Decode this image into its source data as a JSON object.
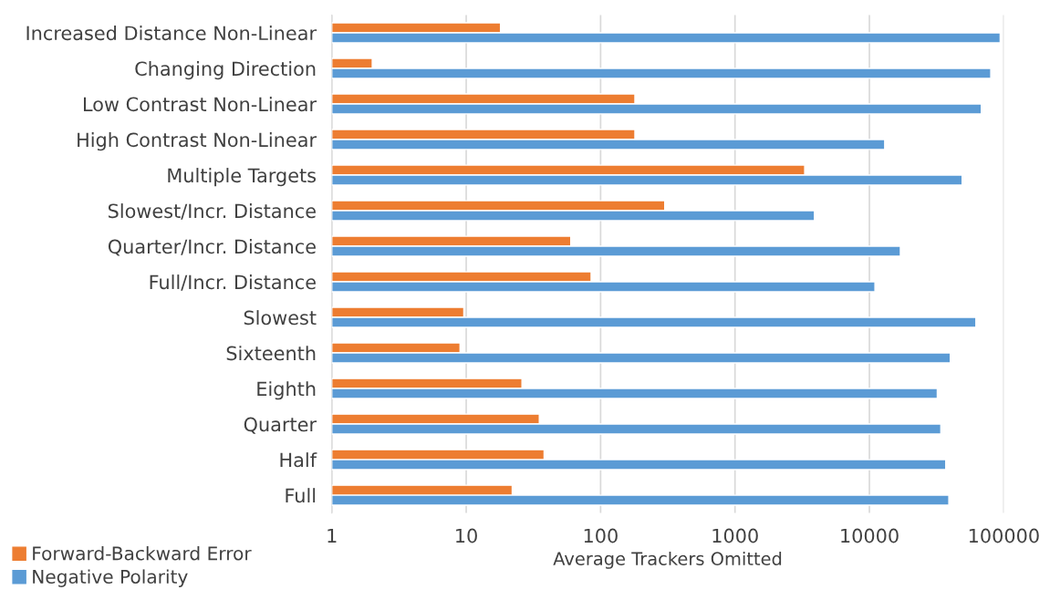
{
  "chart_data": {
    "type": "bar",
    "orientation": "horizontal",
    "log": "x",
    "categories": [
      "Increased Distance Non-Linear",
      "Changing Direction",
      "Low Contrast Non-Linear",
      "High Contrast Non-Linear",
      "Multiple Targets",
      "Slowest/Incr. Distance",
      "Quarter/Incr. Distance",
      "Full/Incr. Distance",
      "Slowest",
      "Sixteenth",
      "Eighth",
      "Quarter",
      "Half",
      "Full"
    ],
    "series": [
      {
        "name": "Forward-Backward Error",
        "color": "#ed7d31",
        "values": [
          18,
          2,
          180,
          180,
          3300,
          300,
          60,
          85,
          9.6,
          9,
          26,
          35,
          38,
          22
        ]
      },
      {
        "name": "Negative Polarity",
        "color": "#5b9bd5",
        "values": [
          94000,
          80000,
          68000,
          13000,
          49000,
          3900,
          17000,
          11000,
          62000,
          40000,
          32000,
          34000,
          37000,
          39000
        ]
      }
    ],
    "xlabel": "Average Trackers Omitted",
    "xlim": [
      1,
      100000
    ],
    "xticks": [
      1,
      10,
      100,
      1000,
      10000,
      100000
    ],
    "grid": "x",
    "legend": "bottom left"
  }
}
